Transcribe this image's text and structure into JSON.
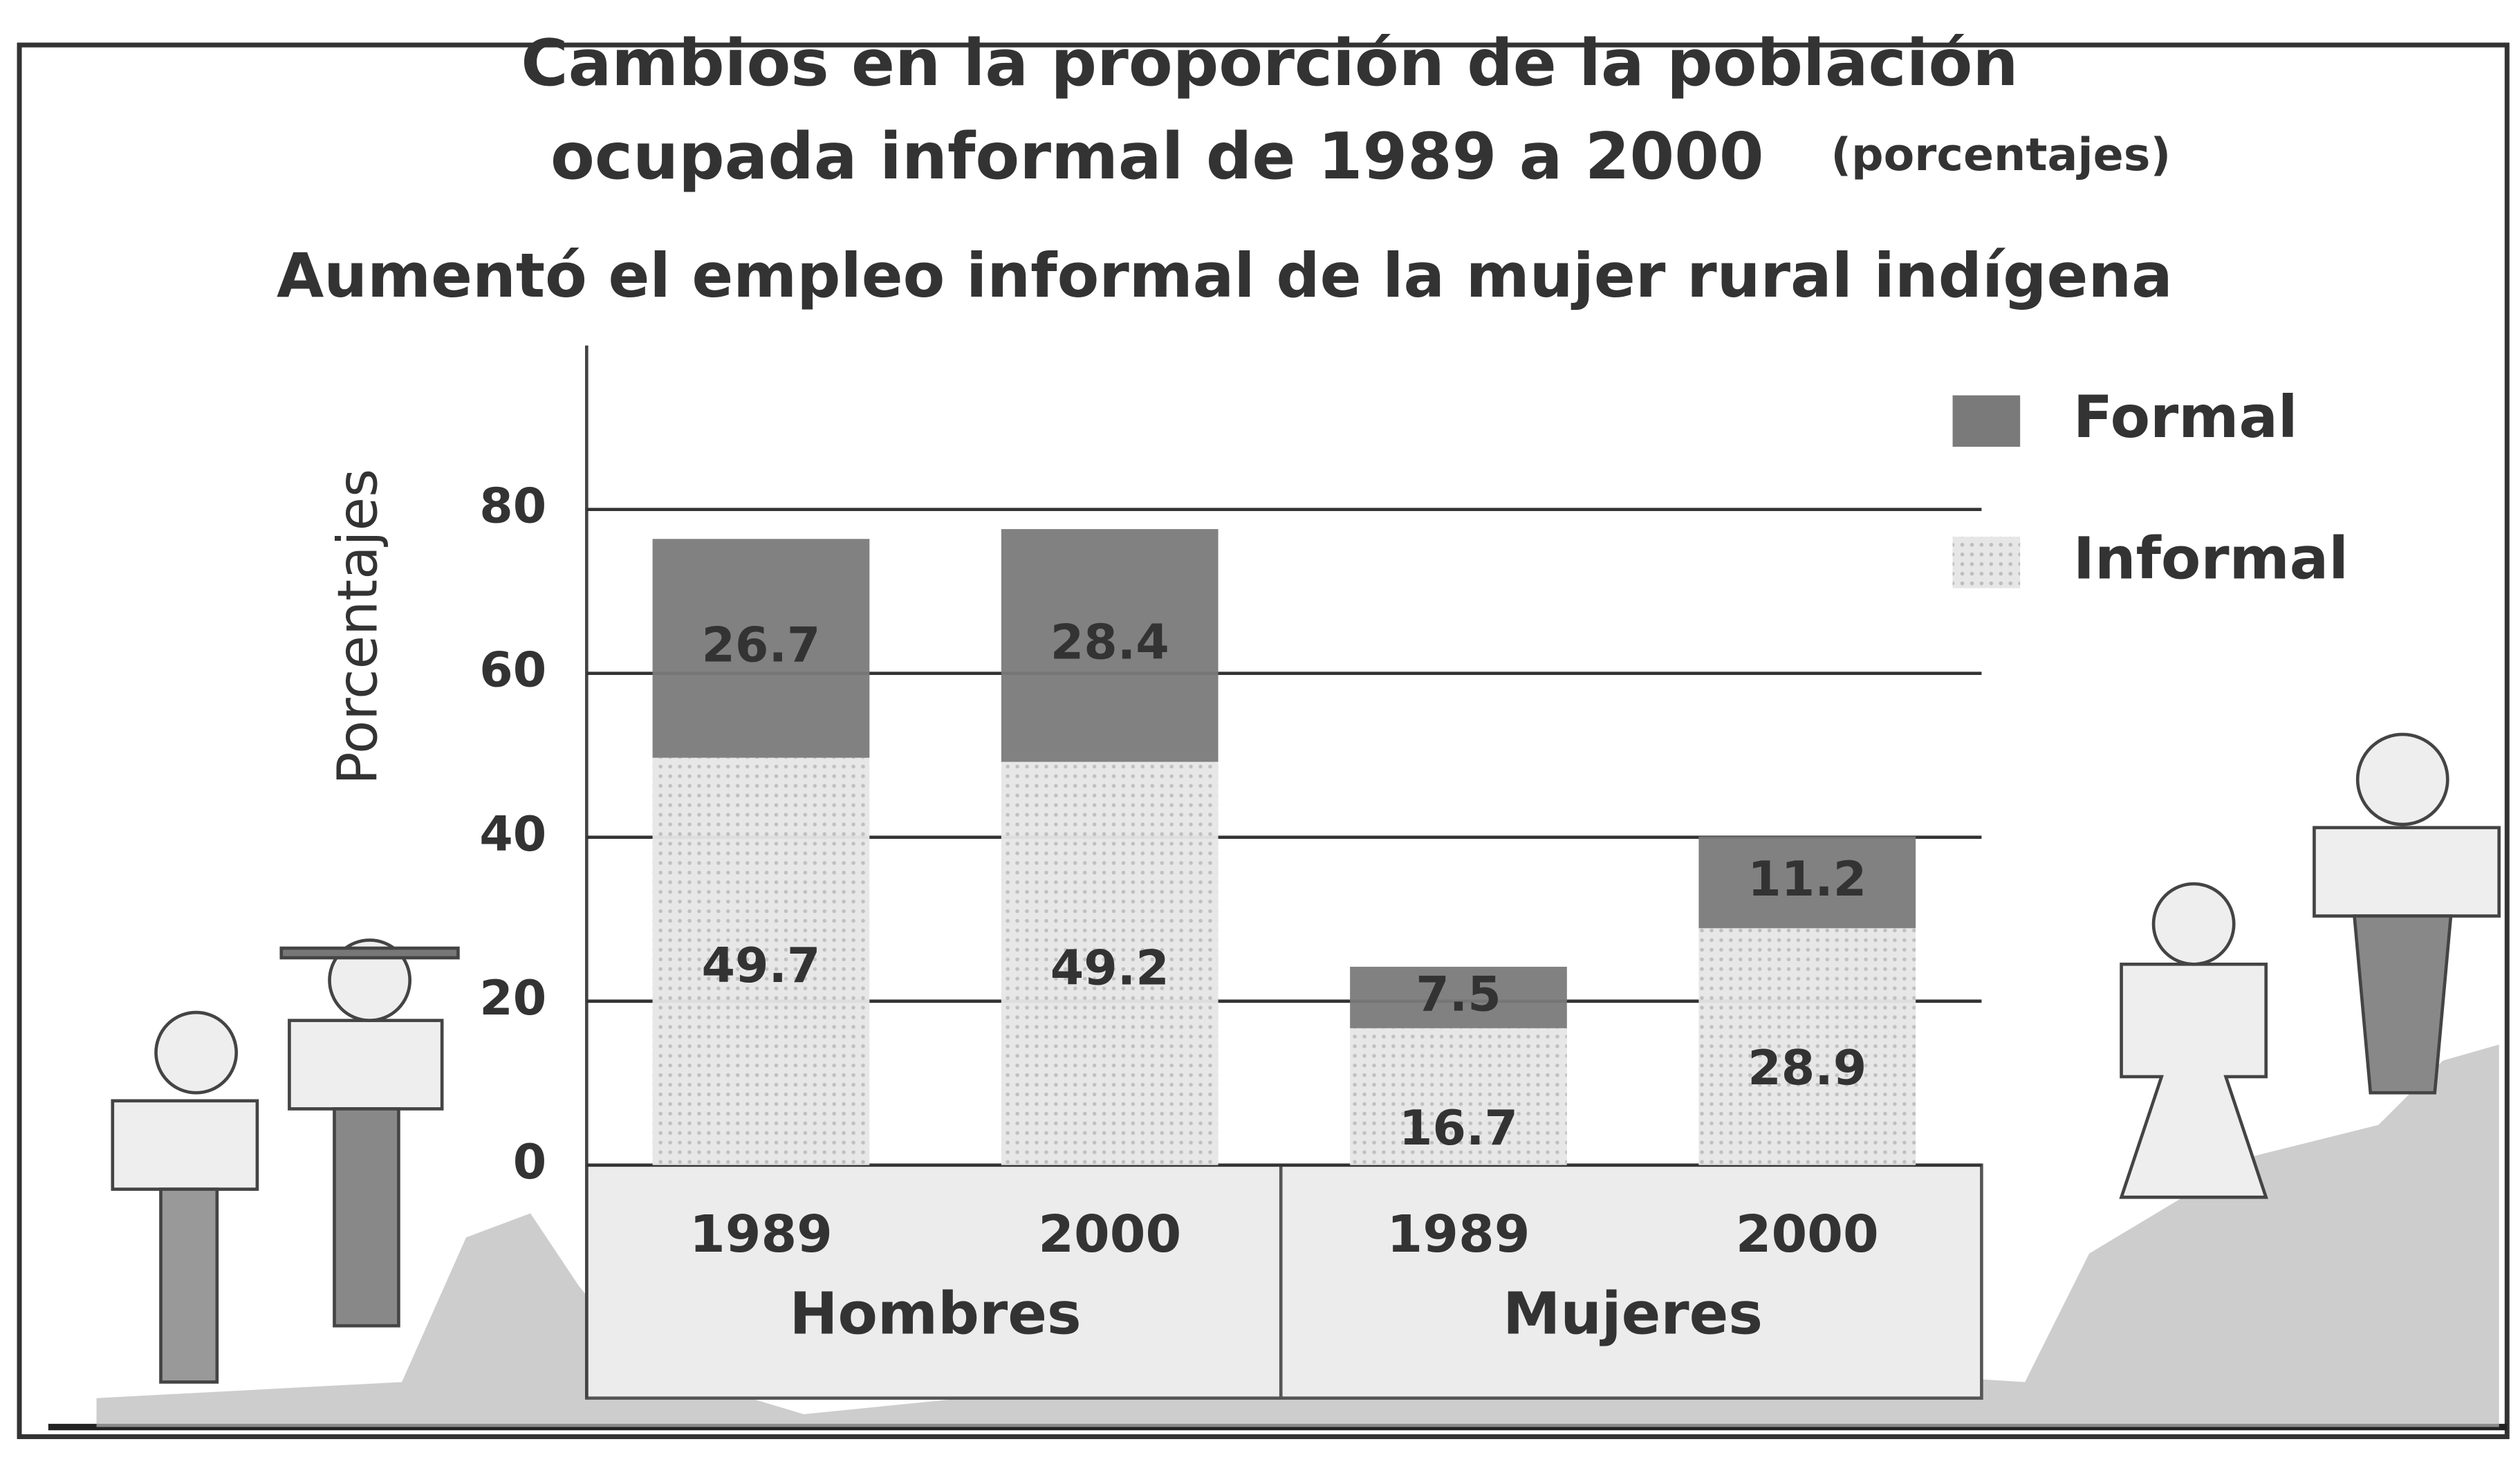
{
  "chart_data": {
    "type": "stacked-bar",
    "title": [
      "Cambios en la proporción de la población",
      "ocupada informal de  1989 a 2000"
    ],
    "title_unit": "(porcentajes)",
    "subtitle": "Aumentó el empleo informal de la mujer rural indígena",
    "y_label": "Porcentajes",
    "categories": [
      "1989",
      "2000",
      "1989",
      "2000"
    ],
    "groups": [
      "Hombres",
      "Mujeres"
    ],
    "series": [
      {
        "name": "Informal",
        "color": "#d9d9d9",
        "values": [
          49.7,
          49.2,
          16.7,
          28.9
        ]
      },
      {
        "name": "Formal",
        "color": "#7a7a7a",
        "values": [
          26.7,
          28.4,
          7.5,
          11.2
        ]
      }
    ],
    "ylim": [
      0,
      100
    ],
    "yticks": [
      0,
      20,
      40,
      60,
      80
    ],
    "grid": true,
    "legend": "top-right"
  }
}
